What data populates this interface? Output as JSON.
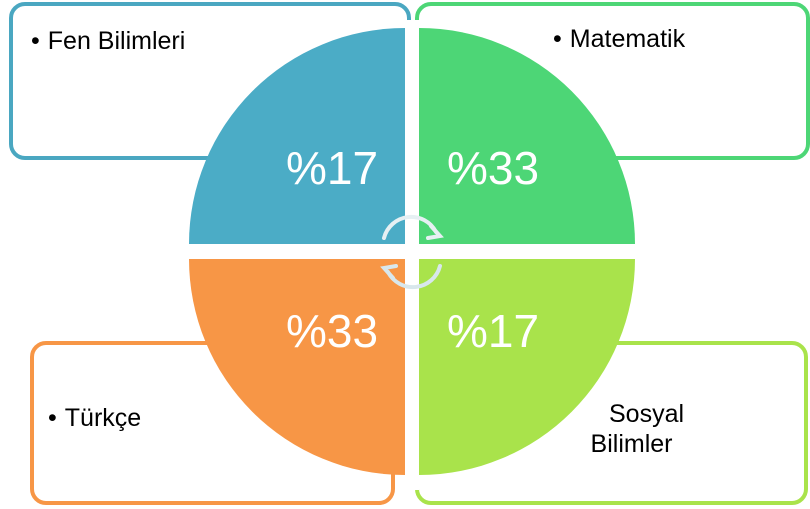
{
  "quadrants": {
    "top_left": {
      "label": "Fen Bilimleri",
      "value": "%17",
      "color": "#4bacc6",
      "border": "#4aa7c1"
    },
    "top_right": {
      "label": "Matematik",
      "value": "%33",
      "color": "#4dd676",
      "border": "#4dd676"
    },
    "bottom_left": {
      "label": "Türkçe",
      "value": "%33",
      "color": "#f79646",
      "border": "#f79646"
    },
    "bottom_right": {
      "label_line1": "Sosyal",
      "label_line2": "Bilimler",
      "value": "%17",
      "color": "#a9e34b",
      "border": "#a9e34b"
    }
  },
  "bullet": "•"
}
